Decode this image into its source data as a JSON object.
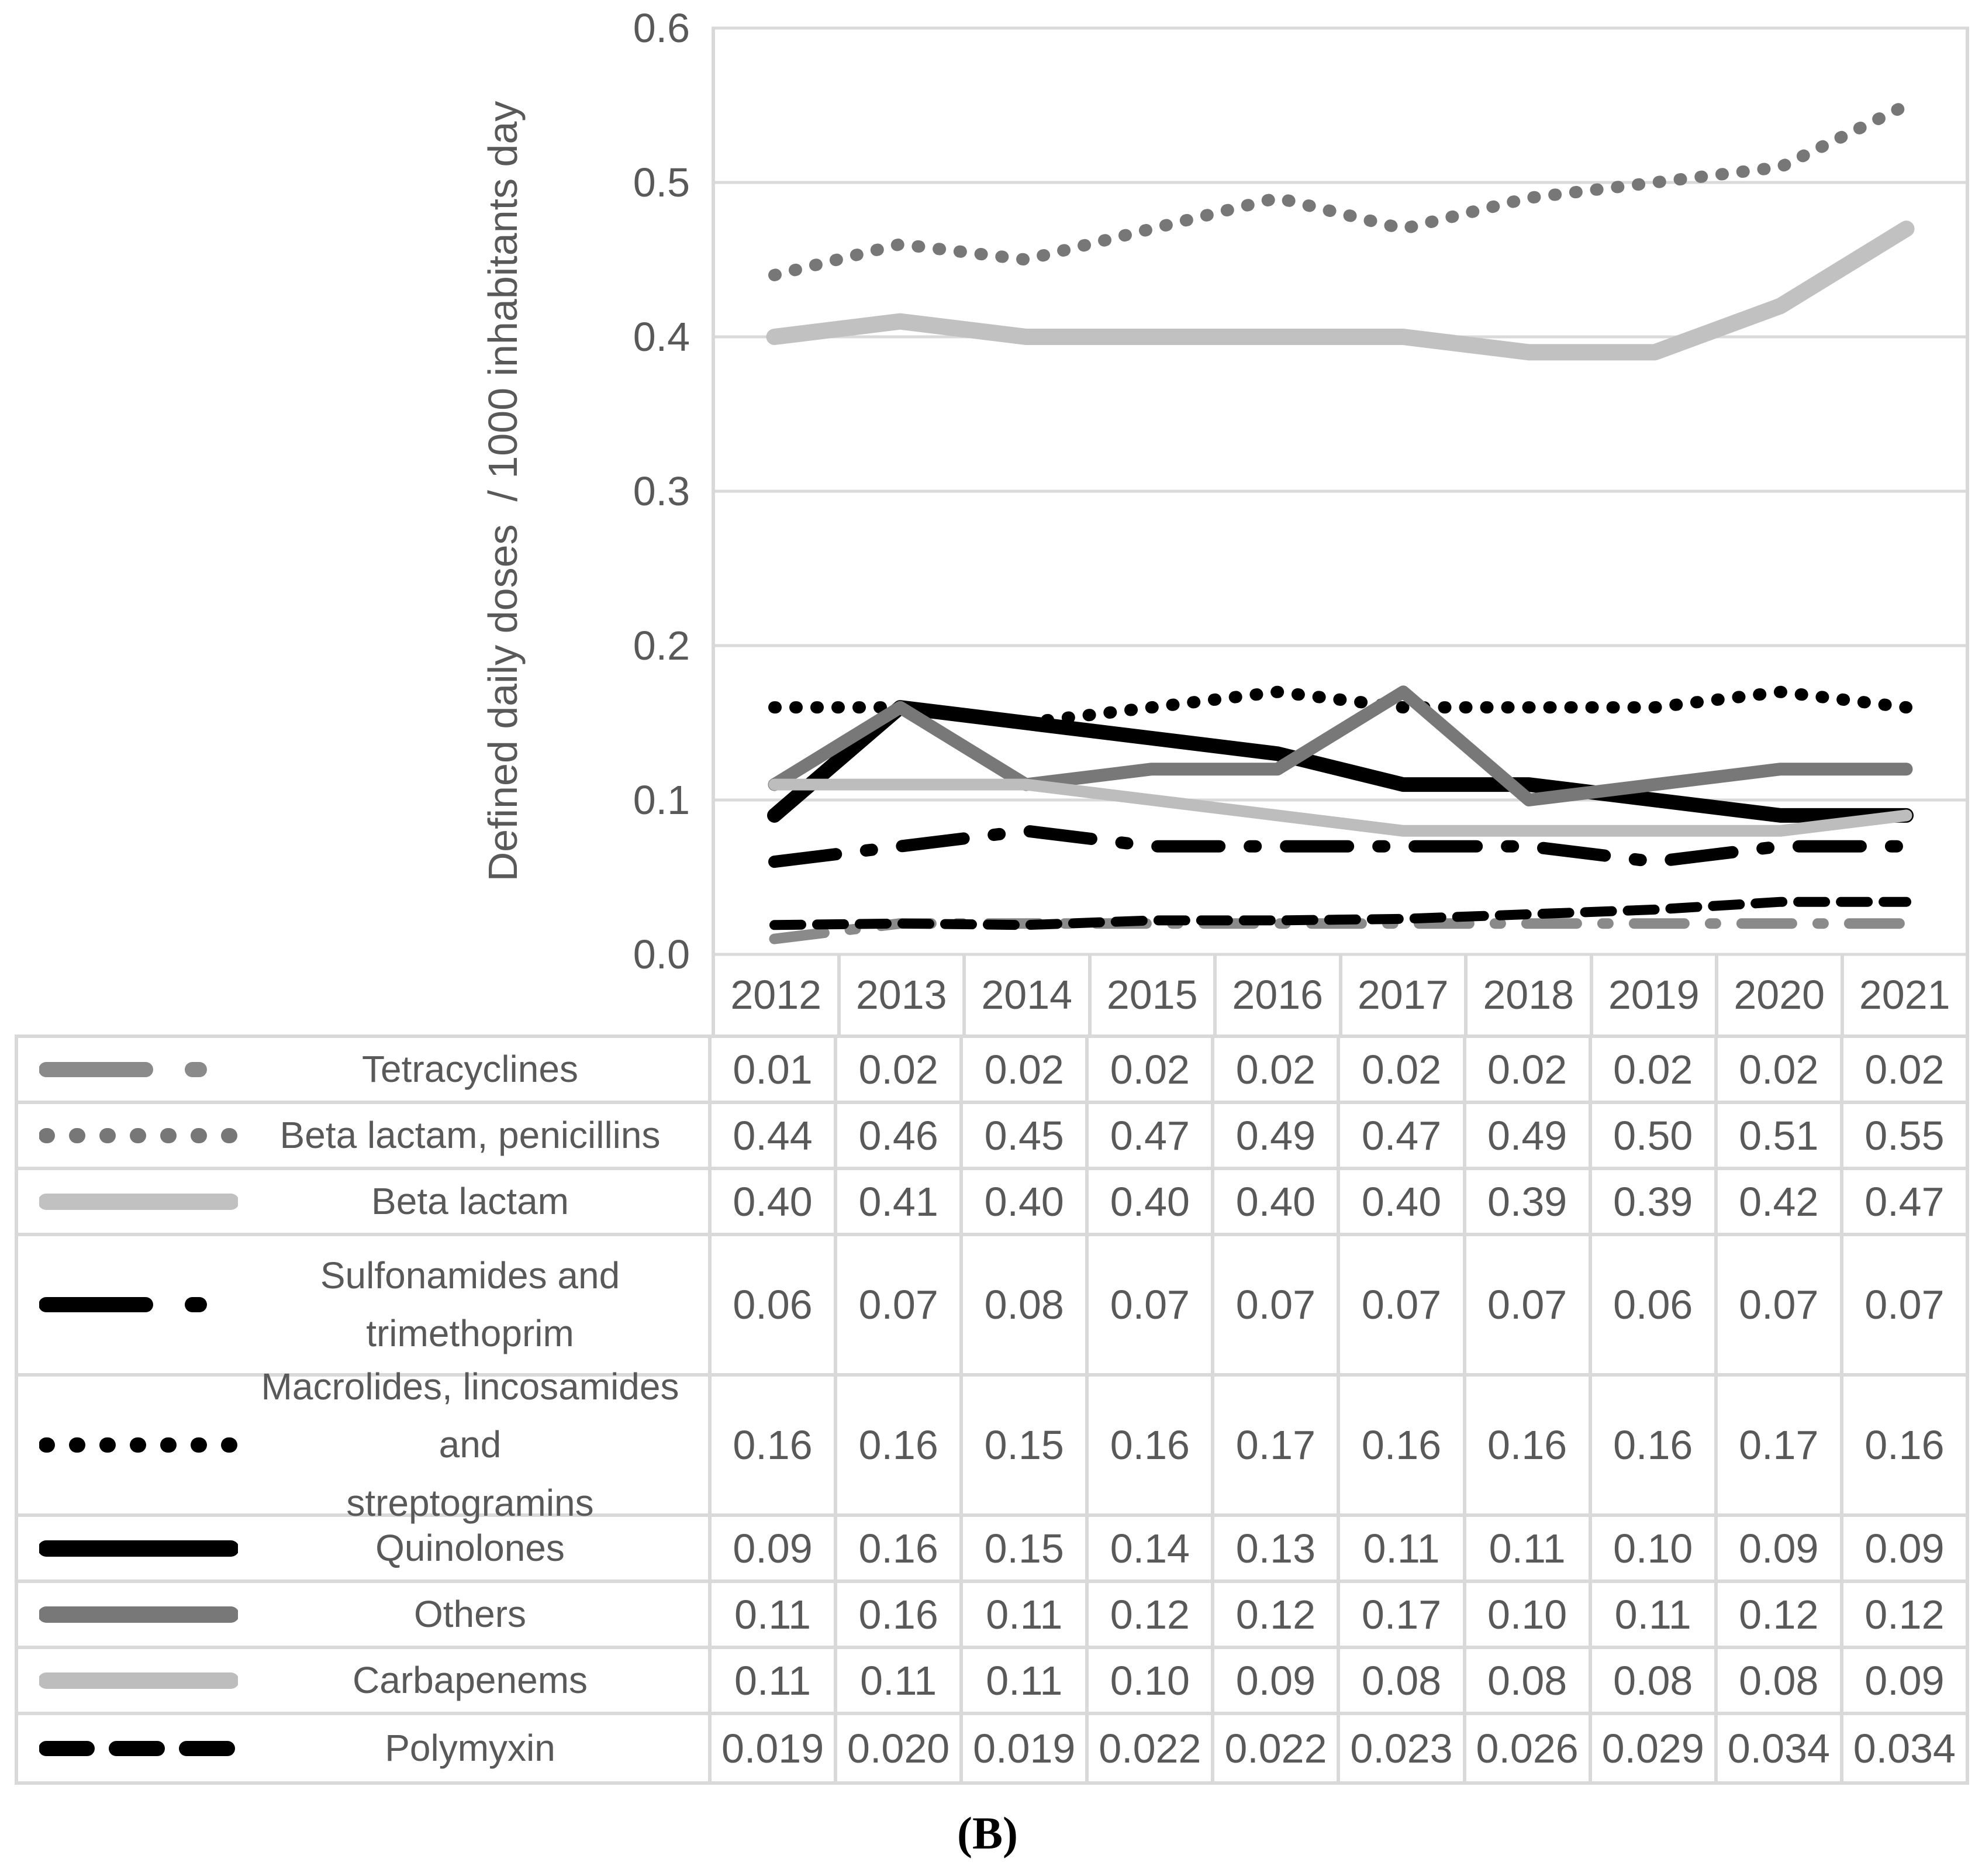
{
  "caption": "(B)",
  "chart_data": {
    "type": "line",
    "title": "",
    "ylabel": "Defined daily doses  / 1000 inhabitants day",
    "xlabel": "",
    "ylim": [
      0.0,
      0.6
    ],
    "yticks": [
      "0.6",
      "0.5",
      "0.4",
      "0.3",
      "0.2",
      "0.1",
      "0.0"
    ],
    "grid": "horizontal",
    "legend_position": "table-left",
    "x": [
      "2012",
      "2013",
      "2014",
      "2015",
      "2016",
      "2017",
      "2018",
      "2019",
      "2020",
      "2021"
    ],
    "series": [
      {
        "name": "Tetracyclines",
        "color": "#8A8A8A",
        "line_style": "dash_dot",
        "values": [
          0.01,
          0.02,
          0.02,
          0.02,
          0.02,
          0.02,
          0.02,
          0.02,
          0.02,
          0.02
        ],
        "display": [
          "0.01",
          "0.02",
          "0.02",
          "0.02",
          "0.02",
          "0.02",
          "0.02",
          "0.02",
          "0.02",
          "0.02"
        ]
      },
      {
        "name": "Beta lactam, penicillins",
        "color": "#777777",
        "line_style": "dotted",
        "values": [
          0.44,
          0.46,
          0.45,
          0.47,
          0.49,
          0.47,
          0.49,
          0.5,
          0.51,
          0.55
        ],
        "display": [
          "0.44",
          "0.46",
          "0.45",
          "0.47",
          "0.49",
          "0.47",
          "0.49",
          "0.50",
          "0.51",
          "0.55"
        ]
      },
      {
        "name": "Beta lactam",
        "color": "#C1C1C1",
        "line_style": "solid",
        "values": [
          0.4,
          0.41,
          0.4,
          0.4,
          0.4,
          0.4,
          0.39,
          0.39,
          0.42,
          0.47
        ],
        "display": [
          "0.40",
          "0.41",
          "0.40",
          "0.40",
          "0.40",
          "0.40",
          "0.39",
          "0.39",
          "0.42",
          "0.47"
        ]
      },
      {
        "name": "Sulfonamides and\ntrimethoprim",
        "color": "#000000",
        "line_style": "long_dash_dot",
        "values": [
          0.06,
          0.07,
          0.08,
          0.07,
          0.07,
          0.07,
          0.07,
          0.06,
          0.07,
          0.07
        ],
        "display": [
          "0.06",
          "0.07",
          "0.08",
          "0.07",
          "0.07",
          "0.07",
          "0.07",
          "0.06",
          "0.07",
          "0.07"
        ]
      },
      {
        "name": "Macrolides, lincosamides and\nstreptogramins",
        "color": "#000000",
        "line_style": "dotted",
        "values": [
          0.16,
          0.16,
          0.15,
          0.16,
          0.17,
          0.16,
          0.16,
          0.16,
          0.17,
          0.16
        ],
        "display": [
          "0.16",
          "0.16",
          "0.15",
          "0.16",
          "0.17",
          "0.16",
          "0.16",
          "0.16",
          "0.17",
          "0.16"
        ]
      },
      {
        "name": "Quinolones",
        "color": "#000000",
        "line_style": "solid",
        "values": [
          0.09,
          0.16,
          0.15,
          0.14,
          0.13,
          0.11,
          0.11,
          0.1,
          0.09,
          0.09
        ],
        "display": [
          "0.09",
          "0.16",
          "0.15",
          "0.14",
          "0.13",
          "0.11",
          "0.11",
          "0.10",
          "0.09",
          "0.09"
        ]
      },
      {
        "name": "Others",
        "color": "#787878",
        "line_style": "solid",
        "values": [
          0.11,
          0.16,
          0.11,
          0.12,
          0.12,
          0.17,
          0.1,
          0.11,
          0.12,
          0.12
        ],
        "display": [
          "0.11",
          "0.16",
          "0.11",
          "0.12",
          "0.12",
          "0.17",
          "0.10",
          "0.11",
          "0.12",
          "0.12"
        ]
      },
      {
        "name": "Carbapenems",
        "color": "#BDBDBD",
        "line_style": "solid",
        "values": [
          0.11,
          0.11,
          0.11,
          0.1,
          0.09,
          0.08,
          0.08,
          0.08,
          0.08,
          0.09
        ],
        "display": [
          "0.11",
          "0.11",
          "0.11",
          "0.10",
          "0.09",
          "0.08",
          "0.08",
          "0.08",
          "0.08",
          "0.09"
        ]
      },
      {
        "name": "Polymyxin",
        "color": "#000000",
        "line_style": "short_dash",
        "values": [
          0.019,
          0.02,
          0.019,
          0.022,
          0.022,
          0.023,
          0.026,
          0.029,
          0.034,
          0.034
        ],
        "display": [
          "0.019",
          "0.020",
          "0.019",
          "0.022",
          "0.022",
          "0.023",
          "0.026",
          "0.029",
          "0.034",
          "0.034"
        ]
      }
    ]
  }
}
